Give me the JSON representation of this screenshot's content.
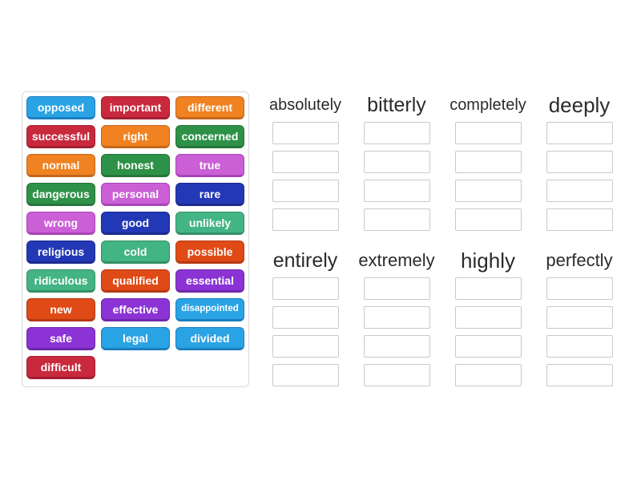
{
  "board": {
    "background": "#ffffff",
    "panel_border": "#d9d9d9",
    "slot_border": "#c9c9c9",
    "header_text_color": "#2b2b2b",
    "tile_text_color": "#ffffff"
  },
  "palette": {
    "blue": {
      "fill": "#2aa3e4",
      "border": "#1b7fc0"
    },
    "crimson": {
      "fill": "#c9293d",
      "border": "#a31f31"
    },
    "orange": {
      "fill": "#f08221",
      "border": "#c4671b"
    },
    "green": {
      "fill": "#2e9148",
      "border": "#257539"
    },
    "orchid": {
      "fill": "#ca5fd6",
      "border": "#a844b5"
    },
    "darkblue": {
      "fill": "#2338b5",
      "border": "#1a2b8f"
    },
    "seagreen": {
      "fill": "#43b483",
      "border": "#349067"
    },
    "orangered": {
      "fill": "#e04a17",
      "border": "#b53a12"
    },
    "purple": {
      "fill": "#8b33d4",
      "border": "#6f28ab"
    }
  },
  "word_bank": {
    "tiles": [
      {
        "label": "opposed",
        "color": "blue"
      },
      {
        "label": "important",
        "color": "crimson"
      },
      {
        "label": "different",
        "color": "orange"
      },
      {
        "label": "successful",
        "color": "crimson"
      },
      {
        "label": "right",
        "color": "orange"
      },
      {
        "label": "concerned",
        "color": "green"
      },
      {
        "label": "normal",
        "color": "orange"
      },
      {
        "label": "honest",
        "color": "green"
      },
      {
        "label": "true",
        "color": "orchid"
      },
      {
        "label": "dangerous",
        "color": "green"
      },
      {
        "label": "personal",
        "color": "orchid"
      },
      {
        "label": "rare",
        "color": "darkblue"
      },
      {
        "label": "wrong",
        "color": "orchid"
      },
      {
        "label": "good",
        "color": "darkblue"
      },
      {
        "label": "unlikely",
        "color": "seagreen"
      },
      {
        "label": "religious",
        "color": "darkblue"
      },
      {
        "label": "cold",
        "color": "seagreen"
      },
      {
        "label": "possible",
        "color": "orangered"
      },
      {
        "label": "ridiculous",
        "color": "seagreen"
      },
      {
        "label": "qualified",
        "color": "orangered"
      },
      {
        "label": "essential",
        "color": "purple"
      },
      {
        "label": "new",
        "color": "orangered"
      },
      {
        "label": "effective",
        "color": "purple"
      },
      {
        "label": "disappointed",
        "color": "blue"
      },
      {
        "label": "safe",
        "color": "purple"
      },
      {
        "label": "legal",
        "color": "blue"
      },
      {
        "label": "divided",
        "color": "blue"
      },
      {
        "label": "difficult",
        "color": "crimson"
      }
    ]
  },
  "groups": [
    {
      "label": "absolutely",
      "empty_slots": 4
    },
    {
      "label": "bitterly",
      "empty_slots": 4
    },
    {
      "label": "completely",
      "empty_slots": 4
    },
    {
      "label": "deeply",
      "empty_slots": 4
    },
    {
      "label": "entirely",
      "empty_slots": 4
    },
    {
      "label": "extremely",
      "empty_slots": 4
    },
    {
      "label": "highly",
      "empty_slots": 4
    },
    {
      "label": "perfectly",
      "empty_slots": 4
    }
  ]
}
